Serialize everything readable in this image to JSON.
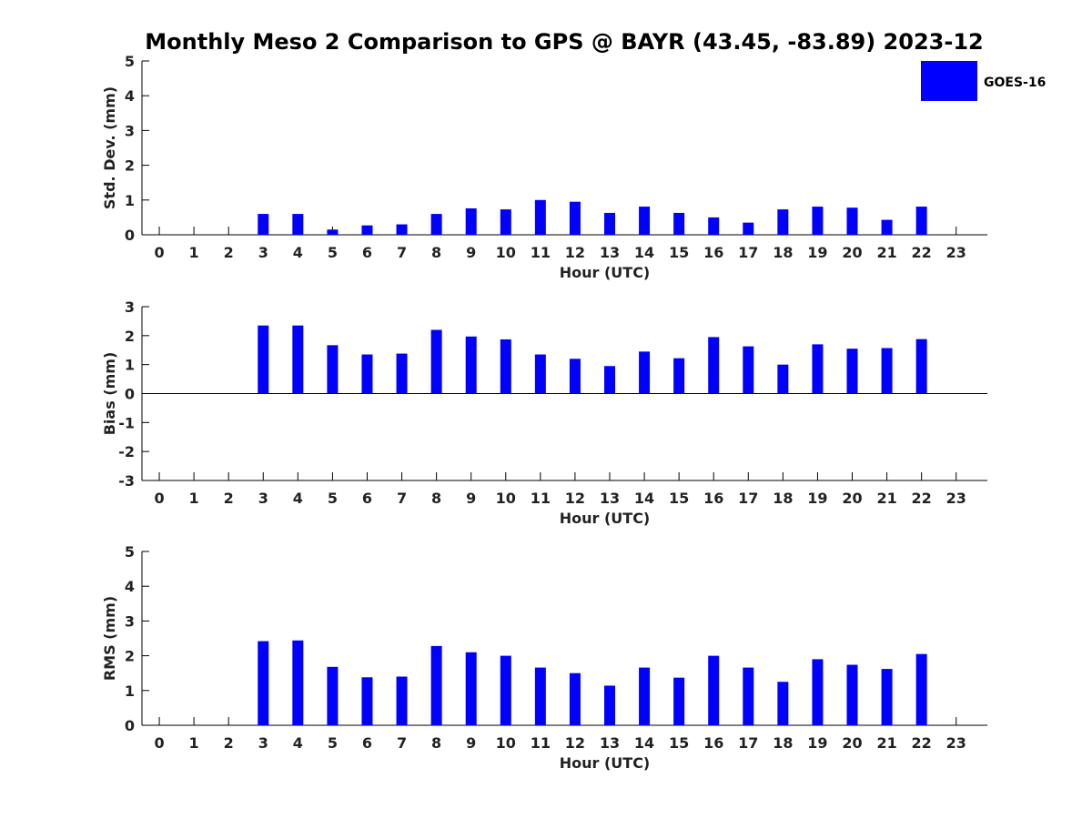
{
  "title": "Monthly Meso 2 Comparison to GPS @ BAYR (43.45, -83.89) 2023-12",
  "legend": {
    "label": "GOES-16",
    "color": "#0000ff",
    "placement": "top-right"
  },
  "chart_data": [
    {
      "type": "bar",
      "ylabel": "Std. Dev. (mm)",
      "xlabel": "Hour (UTC)",
      "ylim": [
        0,
        5
      ],
      "yticks": [
        0,
        1,
        2,
        3,
        4,
        5
      ],
      "x": [
        0,
        1,
        2,
        3,
        4,
        5,
        6,
        7,
        8,
        9,
        10,
        11,
        12,
        13,
        14,
        15,
        16,
        17,
        18,
        19,
        20,
        21,
        22,
        23
      ],
      "values": [
        null,
        null,
        null,
        0.6,
        0.6,
        0.15,
        0.27,
        0.3,
        0.6,
        0.76,
        0.73,
        1.0,
        0.95,
        0.63,
        0.81,
        0.63,
        0.5,
        0.35,
        0.73,
        0.81,
        0.78,
        0.43,
        0.81,
        null
      ],
      "color": "#0000ff"
    },
    {
      "type": "bar",
      "ylabel": "Bias (mm)",
      "xlabel": "Hour (UTC)",
      "ylim": [
        -3,
        3
      ],
      "yticks": [
        -3,
        -2,
        -1,
        0,
        1,
        2,
        3
      ],
      "x": [
        0,
        1,
        2,
        3,
        4,
        5,
        6,
        7,
        8,
        9,
        10,
        11,
        12,
        13,
        14,
        15,
        16,
        17,
        18,
        19,
        20,
        21,
        22,
        23
      ],
      "values": [
        null,
        null,
        null,
        2.35,
        2.35,
        1.67,
        1.35,
        1.38,
        2.2,
        1.97,
        1.87,
        1.35,
        1.2,
        0.95,
        1.45,
        1.22,
        1.95,
        1.63,
        1.0,
        1.7,
        1.55,
        1.57,
        1.88,
        null
      ],
      "color": "#0000ff"
    },
    {
      "type": "bar",
      "ylabel": "RMS (mm)",
      "xlabel": "Hour (UTC)",
      "ylim": [
        0,
        5
      ],
      "yticks": [
        0,
        1,
        2,
        3,
        4,
        5
      ],
      "x": [
        0,
        1,
        2,
        3,
        4,
        5,
        6,
        7,
        8,
        9,
        10,
        11,
        12,
        13,
        14,
        15,
        16,
        17,
        18,
        19,
        20,
        21,
        22,
        23
      ],
      "values": [
        null,
        null,
        null,
        2.42,
        2.44,
        1.68,
        1.38,
        1.4,
        2.28,
        2.1,
        2.0,
        1.66,
        1.5,
        1.14,
        1.66,
        1.37,
        2.0,
        1.66,
        1.25,
        1.9,
        1.74,
        1.62,
        2.05,
        null
      ],
      "color": "#0000ff"
    }
  ]
}
